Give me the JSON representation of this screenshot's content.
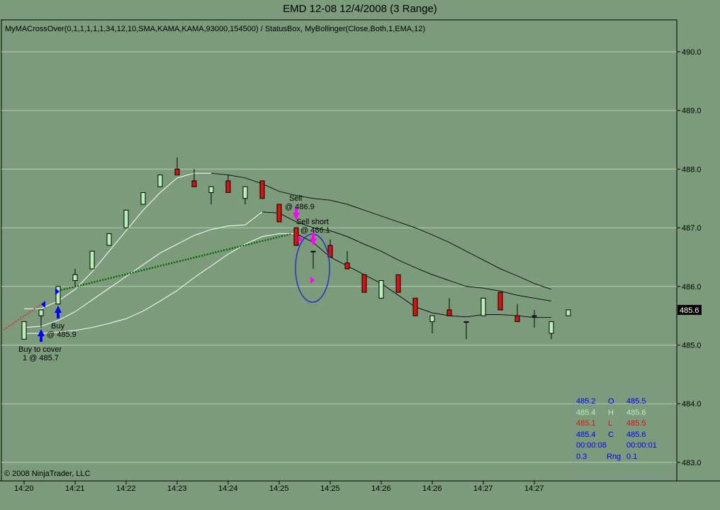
{
  "title": "EMD 12-08  12/4/2008 (3 Range)",
  "indicator_label": "MyMACrossOver(0,1,1,1,1,1,34,12,10,SMA,KAMA,KAMA,93000,154500) / StatusBox, MyBollinger(Close,Both,1,EMA,12)",
  "copyright": "© 2008 NinjaTrader, LLC",
  "last_price": "485.6",
  "colors": {
    "background": "#7b9b7b",
    "up": "#b8f0b8",
    "down": "#dd1111",
    "marker_buy": "#0000ff",
    "marker_sell": "#ff00ff"
  },
  "status_box": {
    "rows": [
      {
        "left": "485.2",
        "mid": "O",
        "right": "485.5",
        "color": "#0000ff"
      },
      {
        "left": "485.4",
        "mid": "H",
        "right": "485.6",
        "color": "#b8f0b8"
      },
      {
        "left": "485.1",
        "mid": "L",
        "right": "485.5",
        "color": "#dd1111"
      },
      {
        "left": "485.4",
        "mid": "C",
        "right": "485.6",
        "color": "#0000ff"
      },
      {
        "left": "00:00:08",
        "mid": "",
        "right": "00:00:01",
        "color": "#0000ff"
      },
      {
        "left": "0.3",
        "mid": "Rng",
        "right": "0.1",
        "color": "#0000ff"
      }
    ]
  },
  "chart_data": {
    "type": "candlestick",
    "title": "EMD 12-08  12/4/2008 (3 Range)",
    "ylim": [
      482.5,
      490.5
    ],
    "y_ticks": [
      "490.0",
      "489.0",
      "488.0",
      "487.0",
      "486.0",
      "485.0",
      "484.0",
      "483.0"
    ],
    "y_tick_values": [
      490,
      489,
      488,
      487,
      486,
      485,
      484,
      483
    ],
    "x_ticks": [
      {
        "bar": 0,
        "label": "14:20"
      },
      {
        "bar": 3,
        "label": "14:21"
      },
      {
        "bar": 6,
        "label": "14:22"
      },
      {
        "bar": 9,
        "label": "14:23"
      },
      {
        "bar": 12,
        "label": "14:24"
      },
      {
        "bar": 15,
        "label": "14:25"
      },
      {
        "bar": 18,
        "label": "14:25"
      },
      {
        "bar": 21,
        "label": "14:26"
      },
      {
        "bar": 24,
        "label": "14:26"
      },
      {
        "bar": 27,
        "label": "14:27"
      },
      {
        "bar": 30,
        "label": "14:27"
      }
    ],
    "ohlc": [
      [
        485.1,
        485.4,
        485.1,
        485.4
      ],
      [
        485.5,
        485.6,
        485.3,
        485.6
      ],
      [
        485.7,
        486.0,
        485.7,
        486.0
      ],
      [
        486.1,
        486.3,
        486.0,
        486.2
      ],
      [
        486.3,
        486.6,
        486.3,
        486.6
      ],
      [
        486.7,
        486.9,
        486.7,
        486.9
      ],
      [
        487.0,
        487.3,
        487.0,
        487.3
      ],
      [
        487.4,
        487.6,
        487.4,
        487.6
      ],
      [
        487.7,
        487.9,
        487.7,
        487.9
      ],
      [
        488.0,
        488.2,
        487.9,
        487.9
      ],
      [
        487.8,
        488.0,
        487.7,
        487.7
      ],
      [
        487.6,
        487.7,
        487.4,
        487.7
      ],
      [
        487.8,
        487.9,
        487.6,
        487.6
      ],
      [
        487.5,
        487.7,
        487.4,
        487.7
      ],
      [
        487.8,
        487.8,
        487.5,
        487.5
      ],
      [
        487.4,
        487.4,
        487.1,
        487.1
      ],
      [
        487.0,
        487.0,
        486.7,
        486.7
      ],
      [
        486.6,
        486.6,
        486.3,
        486.6
      ],
      [
        486.7,
        486.8,
        486.5,
        486.5
      ],
      [
        486.4,
        486.6,
        486.3,
        486.3
      ],
      [
        486.2,
        486.2,
        485.9,
        485.9
      ],
      [
        485.8,
        486.1,
        485.8,
        486.1
      ],
      [
        486.2,
        486.2,
        485.9,
        485.9
      ],
      [
        485.8,
        485.8,
        485.5,
        485.5
      ],
      [
        485.4,
        485.5,
        485.2,
        485.5
      ],
      [
        485.6,
        485.8,
        485.5,
        485.5
      ],
      [
        485.4,
        485.4,
        485.1,
        485.4
      ],
      [
        485.5,
        485.8,
        485.5,
        485.8
      ],
      [
        485.9,
        485.9,
        485.6,
        485.6
      ],
      [
        485.5,
        485.7,
        485.4,
        485.4
      ],
      [
        485.5,
        485.6,
        485.3,
        485.5
      ],
      [
        485.2,
        485.4,
        485.1,
        485.4
      ],
      [
        485.5,
        485.6,
        485.5,
        485.6
      ]
    ],
    "series": [
      {
        "name": "Upper",
        "start": 0,
        "values": [
          485.62,
          485.62,
          485.75,
          485.95,
          486.25,
          486.6,
          486.95,
          487.3,
          487.6,
          487.85,
          487.93,
          487.93,
          487.9,
          487.85,
          487.75,
          487.62,
          487.55,
          487.5,
          487.47,
          487.4,
          487.3,
          487.2,
          487.1,
          487.0,
          486.88,
          486.75,
          486.6,
          486.45,
          486.3,
          486.18,
          486.05,
          485.95
        ]
      },
      {
        "name": "Middle",
        "start": 0,
        "values": [
          485.3,
          485.32,
          485.42,
          485.57,
          485.77,
          485.97,
          486.17,
          486.37,
          486.57,
          486.72,
          486.87,
          486.97,
          487.03,
          487.05,
          487.27,
          487.25,
          487.1,
          487.0,
          486.95,
          486.85,
          486.72,
          486.6,
          486.45,
          486.32,
          486.2,
          486.1,
          486.0,
          485.97,
          485.92,
          485.85,
          485.8,
          485.75
        ]
      },
      {
        "name": "Lower",
        "start": 0,
        "values": [
          485.2,
          485.2,
          485.22,
          485.25,
          485.3,
          485.37,
          485.45,
          485.58,
          485.75,
          485.93,
          486.15,
          486.35,
          486.55,
          486.72,
          486.85,
          486.9,
          486.9,
          486.75,
          486.5,
          486.35,
          486.2,
          486.05,
          485.85,
          485.65,
          485.55,
          485.5,
          485.48,
          485.52,
          485.52,
          485.5,
          485.47,
          485.47
        ]
      }
    ],
    "annotations": [
      {
        "bar": 0,
        "text": "Buy to cover",
        "text2": "1 @ 485.7"
      },
      {
        "bar": 2,
        "text": "Buy",
        "text2": "@ 485.9"
      },
      {
        "bar": 16,
        "text": "Sell",
        "text2": "@ 486.9"
      },
      {
        "bar": 17,
        "text": "Sell short",
        "text2": "@ 486.1"
      }
    ]
  }
}
